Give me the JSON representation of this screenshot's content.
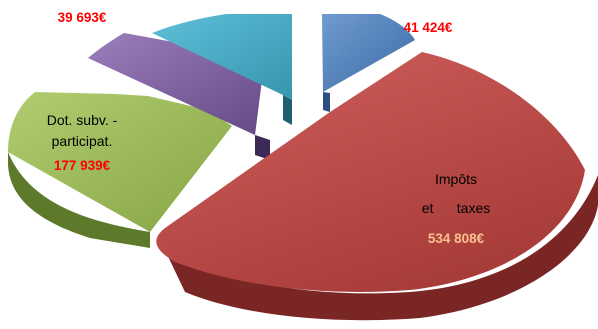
{
  "chart_data": {
    "type": "pie",
    "title": "",
    "three_d": true,
    "exploded": true,
    "slices": [
      {
        "key": "s0",
        "label": "",
        "value": 41424,
        "value_label": "41 424€",
        "color": "#4f81bd"
      },
      {
        "key": "s1",
        "label_lines": [
          "Impôts",
          "et      taxes"
        ],
        "value": 534808,
        "value_label": "534 808€",
        "color": "#c0504d"
      },
      {
        "key": "s2",
        "label_lines": [
          "Dot. subv. -",
          "participat."
        ],
        "value": 177939,
        "value_label": "177 939€",
        "color": "#9bbb59"
      },
      {
        "key": "s3",
        "label": "",
        "value": 39693,
        "value_label": "39 693€",
        "color": "#8064a2"
      },
      {
        "key": "s4",
        "label": "",
        "value": 120000,
        "value_label": "",
        "color": "#4bacc6"
      }
    ],
    "value_label_colors": {
      "dark_bg_text": "#fac090",
      "default_text": "#ff0000",
      "category_text": "#000000"
    }
  }
}
